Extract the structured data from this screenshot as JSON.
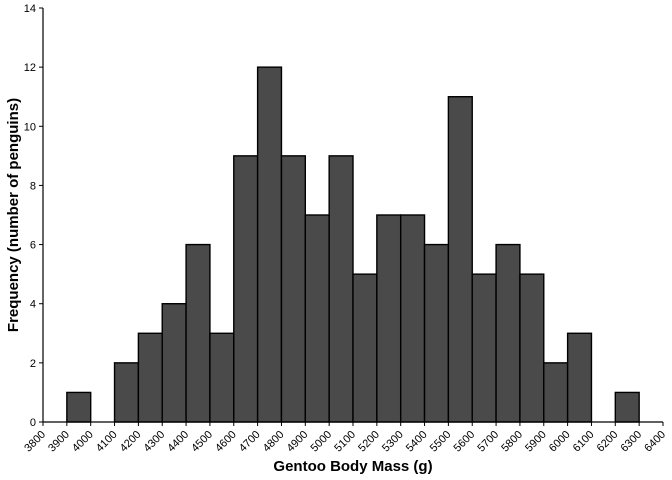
{
  "chart_data": {
    "type": "bar",
    "subtype": "histogram",
    "xlabel": "Gentoo Body Mass (g)",
    "ylabel": "Frequency (number of penguins)",
    "bin_width": 100,
    "xlim": [
      3800,
      6400
    ],
    "ylim": [
      0,
      14
    ],
    "x_ticks": [
      3800,
      3900,
      4000,
      4100,
      4200,
      4300,
      4400,
      4500,
      4600,
      4700,
      4800,
      4900,
      5000,
      5100,
      5200,
      5300,
      5400,
      5500,
      5600,
      5700,
      5800,
      5900,
      6000,
      6100,
      6200,
      6300,
      6400
    ],
    "y_ticks": [
      0,
      2,
      4,
      6,
      8,
      10,
      12,
      14
    ],
    "bins": [
      {
        "start": 3900,
        "end": 4000,
        "count": 1
      },
      {
        "start": 4000,
        "end": 4100,
        "count": 0
      },
      {
        "start": 4100,
        "end": 4200,
        "count": 2
      },
      {
        "start": 4200,
        "end": 4300,
        "count": 3
      },
      {
        "start": 4300,
        "end": 4400,
        "count": 4
      },
      {
        "start": 4400,
        "end": 4500,
        "count": 6
      },
      {
        "start": 4500,
        "end": 4600,
        "count": 3
      },
      {
        "start": 4600,
        "end": 4700,
        "count": 9
      },
      {
        "start": 4700,
        "end": 4800,
        "count": 12
      },
      {
        "start": 4800,
        "end": 4900,
        "count": 9
      },
      {
        "start": 4900,
        "end": 5000,
        "count": 7
      },
      {
        "start": 5000,
        "end": 5100,
        "count": 9
      },
      {
        "start": 5100,
        "end": 5200,
        "count": 5
      },
      {
        "start": 5200,
        "end": 5300,
        "count": 7
      },
      {
        "start": 5300,
        "end": 5400,
        "count": 7
      },
      {
        "start": 5400,
        "end": 5500,
        "count": 6
      },
      {
        "start": 5500,
        "end": 5600,
        "count": 11
      },
      {
        "start": 5600,
        "end": 5700,
        "count": 5
      },
      {
        "start": 5700,
        "end": 5800,
        "count": 6
      },
      {
        "start": 5800,
        "end": 5900,
        "count": 5
      },
      {
        "start": 5900,
        "end": 6000,
        "count": 2
      },
      {
        "start": 6000,
        "end": 6100,
        "count": 3
      },
      {
        "start": 6100,
        "end": 6200,
        "count": 0
      },
      {
        "start": 6200,
        "end": 6300,
        "count": 1
      }
    ],
    "bar_color": "#4a4a4a",
    "grid": false,
    "legend": "none"
  }
}
